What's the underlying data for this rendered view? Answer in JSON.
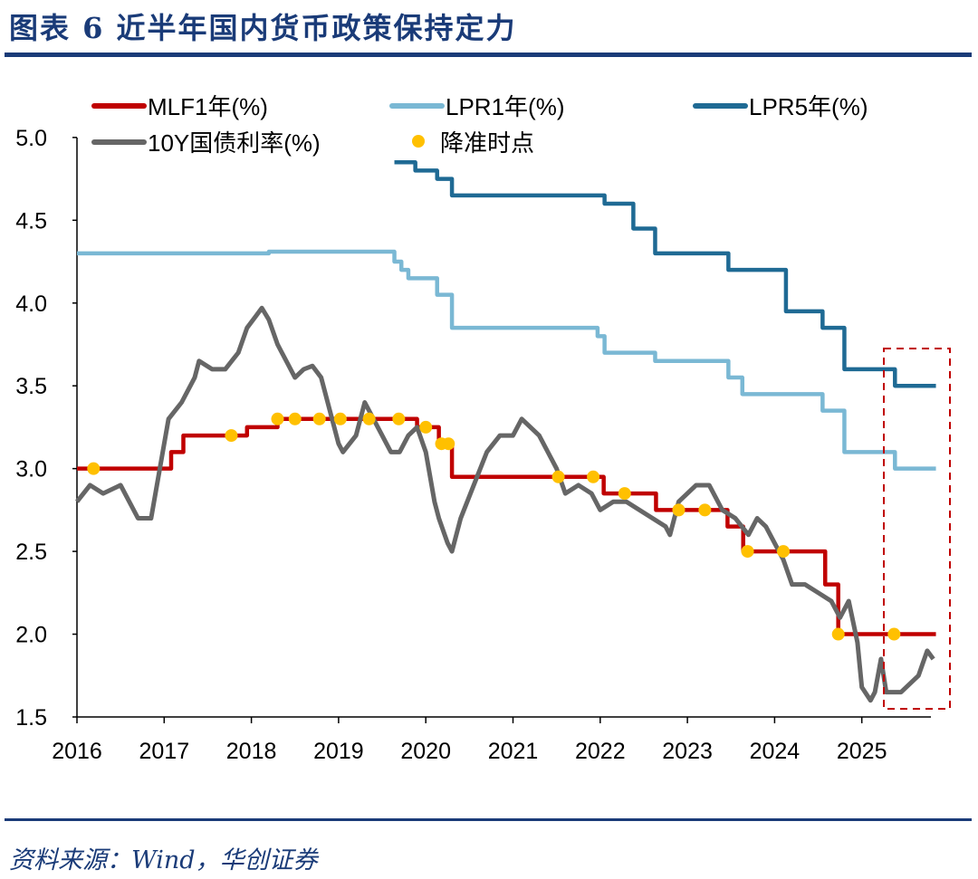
{
  "title": "图表 6   近半年国内货币政策保持定力",
  "source": "资料来源：Wind，华创证券",
  "chart_data": {
    "type": "line",
    "xlabel": "",
    "ylabel": "",
    "xlim": [
      2016,
      2025.85
    ],
    "ylim": [
      1.5,
      5.0
    ],
    "xticks": [
      "2016",
      "2017",
      "2018",
      "2019",
      "2020",
      "2021",
      "2022",
      "2023",
      "2024",
      "2025"
    ],
    "yticks": [
      "1.5",
      "2.0",
      "2.5",
      "3.0",
      "3.5",
      "4.0",
      "4.5",
      "5.0"
    ],
    "grid": false,
    "legend": "top",
    "series": [
      {
        "name": "MLF1年(%)",
        "color": "#c00000",
        "step": true,
        "x": [
          2016.0,
          2017.08,
          2017.22,
          2017.95,
          2018.3,
          2019.9,
          2020.15,
          2020.3,
          2022.04,
          2022.64,
          2023.46,
          2023.64,
          2024.58,
          2024.73,
          2025.85
        ],
        "y": [
          3.0,
          3.1,
          3.2,
          3.25,
          3.3,
          3.25,
          3.15,
          2.95,
          2.85,
          2.75,
          2.65,
          2.5,
          2.3,
          2.0,
          2.0
        ]
      },
      {
        "name": "LPR1年(%)",
        "color": "#7ab8d4",
        "step": true,
        "x": [
          2016.0,
          2018.2,
          2019.64,
          2019.72,
          2019.8,
          2019.88,
          2020.13,
          2020.3,
          2021.97,
          2022.05,
          2022.63,
          2023.47,
          2023.63,
          2024.55,
          2024.8,
          2025.38,
          2025.85
        ],
        "y": [
          4.3,
          4.31,
          4.25,
          4.2,
          4.15,
          4.15,
          4.05,
          3.85,
          3.8,
          3.7,
          3.65,
          3.55,
          3.45,
          3.35,
          3.1,
          3.0,
          3.0
        ]
      },
      {
        "name": "LPR5年(%)",
        "color": "#1f6a94",
        "step": true,
        "x": [
          2019.64,
          2019.88,
          2020.13,
          2020.3,
          2022.05,
          2022.38,
          2022.63,
          2023.47,
          2024.13,
          2024.55,
          2024.8,
          2025.38,
          2025.85
        ],
        "y": [
          4.85,
          4.8,
          4.75,
          4.65,
          4.6,
          4.45,
          4.3,
          4.2,
          3.95,
          3.85,
          3.6,
          3.5,
          3.5
        ]
      },
      {
        "name": "10Y国债利率(%)",
        "color": "#666666",
        "step": false,
        "x": [
          2016.0,
          2016.15,
          2016.3,
          2016.5,
          2016.7,
          2016.85,
          2016.95,
          2017.05,
          2017.2,
          2017.35,
          2017.4,
          2017.55,
          2017.7,
          2017.85,
          2017.95,
          2018.05,
          2018.12,
          2018.2,
          2018.3,
          2018.4,
          2018.5,
          2018.6,
          2018.7,
          2018.8,
          2018.9,
          2019.0,
          2019.05,
          2019.2,
          2019.3,
          2019.4,
          2019.5,
          2019.6,
          2019.7,
          2019.8,
          2019.9,
          2020.0,
          2020.1,
          2020.15,
          2020.25,
          2020.3,
          2020.4,
          2020.55,
          2020.7,
          2020.85,
          2021.0,
          2021.1,
          2021.3,
          2021.4,
          2021.5,
          2021.6,
          2021.75,
          2021.9,
          2022.0,
          2022.15,
          2022.3,
          2022.45,
          2022.6,
          2022.75,
          2022.8,
          2022.9,
          2023.0,
          2023.1,
          2023.25,
          2023.4,
          2023.55,
          2023.7,
          2023.8,
          2023.9,
          2024.0,
          2024.1,
          2024.2,
          2024.35,
          2024.5,
          2024.65,
          2024.75,
          2024.85,
          2024.95,
          2025.0,
          2025.1,
          2025.15,
          2025.22,
          2025.28,
          2025.45,
          2025.55,
          2025.65,
          2025.75,
          2025.82
        ],
        "y": [
          2.8,
          2.9,
          2.85,
          2.9,
          2.7,
          2.7,
          3.0,
          3.3,
          3.4,
          3.55,
          3.65,
          3.6,
          3.6,
          3.7,
          3.85,
          3.92,
          3.97,
          3.9,
          3.75,
          3.65,
          3.55,
          3.6,
          3.62,
          3.55,
          3.35,
          3.15,
          3.1,
          3.2,
          3.4,
          3.3,
          3.2,
          3.1,
          3.1,
          3.2,
          3.25,
          3.1,
          2.8,
          2.7,
          2.55,
          2.5,
          2.7,
          2.9,
          3.1,
          3.2,
          3.2,
          3.3,
          3.2,
          3.1,
          3.0,
          2.85,
          2.9,
          2.85,
          2.75,
          2.8,
          2.8,
          2.75,
          2.7,
          2.65,
          2.6,
          2.8,
          2.85,
          2.9,
          2.9,
          2.75,
          2.7,
          2.6,
          2.7,
          2.65,
          2.55,
          2.45,
          2.3,
          2.3,
          2.25,
          2.2,
          2.1,
          2.2,
          1.95,
          1.68,
          1.6,
          1.65,
          1.85,
          1.65,
          1.65,
          1.7,
          1.75,
          1.9,
          1.85
        ]
      },
      {
        "name": "降准时点",
        "color": "#ffc000",
        "type": "scatter",
        "x": [
          2016.19,
          2017.77,
          2018.3,
          2018.5,
          2018.78,
          2019.02,
          2019.35,
          2019.69,
          2020.0,
          2020.18,
          2020.26,
          2021.52,
          2021.92,
          2022.28,
          2022.9,
          2023.2,
          2023.69,
          2024.1,
          2024.73,
          2025.37
        ],
        "y": [
          3.0,
          3.2,
          3.3,
          3.3,
          3.3,
          3.3,
          3.3,
          3.3,
          3.25,
          3.15,
          3.15,
          2.95,
          2.95,
          2.85,
          2.75,
          2.75,
          2.5,
          2.5,
          2.0,
          2.0
        ]
      }
    ]
  }
}
